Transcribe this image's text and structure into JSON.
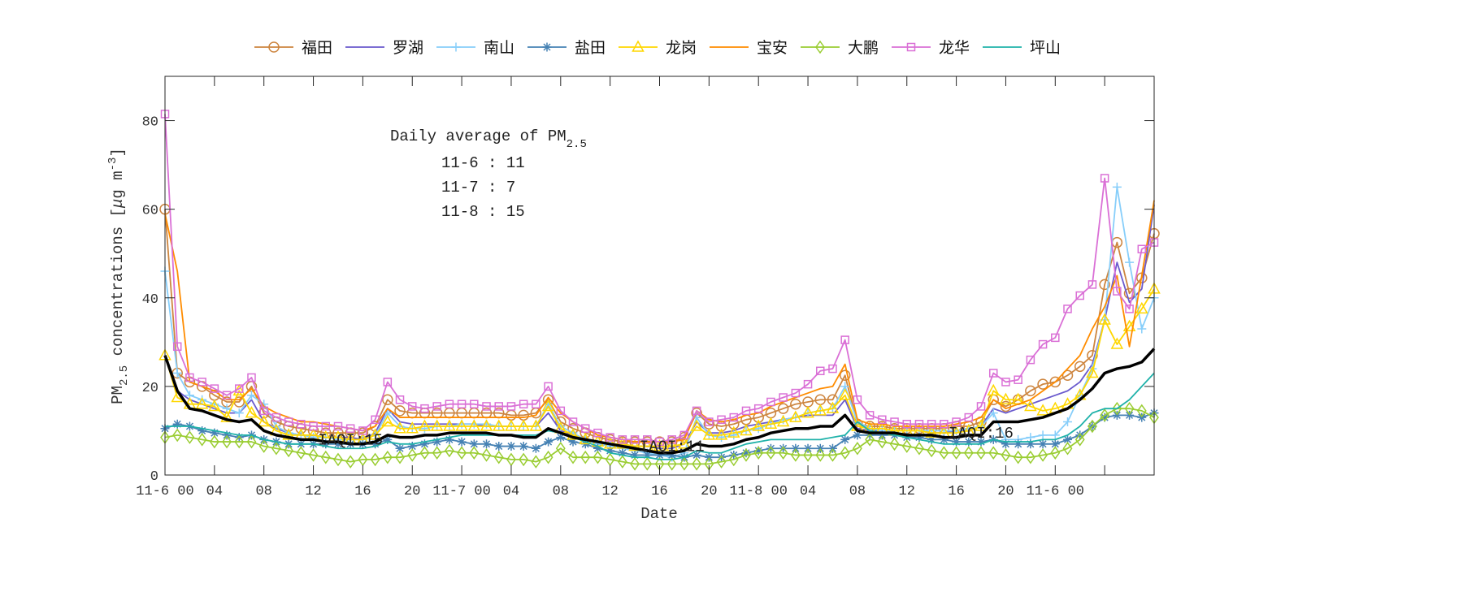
{
  "chart_data": {
    "type": "line",
    "title": "",
    "xlabel": "Date",
    "ylabel": "PM2.5 concentrations [μg m-3]",
    "ylabel_parts": {
      "pre": "PM",
      "sub": "2.5",
      "mid": " concentrations [",
      "mu": "μ",
      "unit": "g m",
      "sup": "-3",
      "post": "]"
    },
    "x_unit": "hour",
    "xlim": [
      0,
      80
    ],
    "ylim": [
      0,
      90
    ],
    "yticks": [
      0,
      20,
      40,
      60,
      80
    ],
    "xticks": [
      {
        "x": 0,
        "label": "11-6 00"
      },
      {
        "x": 4,
        "label": "04"
      },
      {
        "x": 8,
        "label": "08"
      },
      {
        "x": 12,
        "label": "12"
      },
      {
        "x": 16,
        "label": "16"
      },
      {
        "x": 20,
        "label": "20"
      },
      {
        "x": 24,
        "label": "11-7 00"
      },
      {
        "x": 28,
        "label": "04"
      },
      {
        "x": 32,
        "label": "08"
      },
      {
        "x": 36,
        "label": "12"
      },
      {
        "x": 40,
        "label": "16"
      },
      {
        "x": 44,
        "label": "20"
      },
      {
        "x": 48,
        "label": "11-8 00"
      },
      {
        "x": 52,
        "label": "04"
      },
      {
        "x": 56,
        "label": "08"
      },
      {
        "x": 60,
        "label": "12"
      },
      {
        "x": 64,
        "label": "16"
      },
      {
        "x": 68,
        "label": "20"
      },
      {
        "x": 72,
        "label": "11-6 00"
      },
      {
        "x": 76,
        "label": ""
      },
      {
        "x": 80,
        "label": ""
      }
    ],
    "grid": false,
    "legend_placement": "top-outside, horizontal",
    "series": [
      {
        "name": "福田",
        "color": "#CD853F",
        "marker": "circle",
        "values": [
          60,
          23,
          21,
          20,
          18,
          16.5,
          16.5,
          20,
          14,
          12,
          11,
          10.5,
          10,
          9.5,
          9.5,
          9.5,
          9.5,
          11,
          17,
          14.5,
          14,
          14,
          14,
          14,
          14,
          14,
          14,
          14,
          13.5,
          13.5,
          14,
          17,
          12,
          10.5,
          9.5,
          8.5,
          8,
          7.5,
          7.5,
          7.5,
          7.5,
          7.5,
          8.5,
          14,
          11.5,
          11,
          11.5,
          12.5,
          13,
          14,
          15,
          16,
          16.5,
          17,
          17,
          22.5,
          11.5,
          11,
          11,
          10.5,
          10.5,
          10.5,
          10.5,
          10.5,
          11,
          11,
          12,
          17,
          15.5,
          17,
          19,
          20.5,
          21,
          22.5,
          24.5,
          27,
          43,
          52.5,
          41,
          44.5,
          54.5
        ]
      },
      {
        "name": "罗湖",
        "color": "#6A5ACD",
        "marker": "none",
        "values": [
          27,
          19,
          17,
          16,
          15,
          14,
          14,
          17,
          12,
          10.5,
          9.5,
          9,
          9,
          8.5,
          8.5,
          8.5,
          8,
          9.5,
          15,
          12,
          11.5,
          11.5,
          11.5,
          11.5,
          11.5,
          11.5,
          11,
          11,
          11,
          11,
          11,
          14,
          10,
          9,
          8,
          7.5,
          7,
          6.5,
          6.5,
          6.5,
          6,
          6,
          7,
          12,
          9.5,
          9.5,
          10,
          11,
          11.5,
          12,
          12.5,
          13,
          13.5,
          13.5,
          13.5,
          17,
          10.5,
          10,
          10,
          10,
          10,
          10,
          9.5,
          9.5,
          10,
          10,
          11,
          15,
          14,
          15,
          16,
          17,
          18,
          19,
          21,
          25,
          35,
          48,
          39,
          42,
          61
        ]
      },
      {
        "name": "南山",
        "color": "#87CEFA",
        "marker": "plus",
        "values": [
          46,
          23,
          18,
          17,
          16,
          15,
          14,
          18,
          16,
          11,
          9.5,
          9,
          8.5,
          8.5,
          8,
          8,
          8,
          9,
          14,
          11,
          10.5,
          10.5,
          11,
          11,
          11.5,
          11.5,
          11.5,
          11,
          11,
          11,
          11,
          16,
          11,
          9.5,
          8,
          7,
          6.5,
          6,
          5.5,
          5,
          4.5,
          4,
          5,
          13,
          9,
          8.5,
          9,
          10,
          10.5,
          11.5,
          12.5,
          13,
          14,
          14.5,
          15,
          20,
          12,
          10.5,
          10,
          10,
          10,
          10,
          10,
          10,
          10,
          10.5,
          11,
          14,
          8,
          8,
          8.5,
          9,
          9,
          12,
          18,
          24,
          35,
          65,
          48,
          33,
          40
        ]
      },
      {
        "name": "盐田",
        "color": "#4682B4",
        "marker": "asterisk",
        "values": [
          10.5,
          11.5,
          11,
          10,
          9.5,
          9,
          8.5,
          9,
          8,
          7.5,
          7,
          7,
          7,
          7,
          7,
          7,
          7,
          7,
          8,
          6,
          6.5,
          7,
          7.5,
          8,
          7.5,
          7,
          7,
          6.5,
          6.5,
          6.5,
          6,
          7.5,
          8.5,
          7.5,
          7,
          6,
          5.5,
          5,
          4.5,
          4.5,
          4.5,
          4.5,
          4,
          4.5,
          4,
          4,
          4.5,
          5,
          5.5,
          6,
          6,
          6,
          6,
          6,
          6,
          8,
          9,
          9,
          9,
          9,
          8.5,
          8.5,
          8,
          8,
          7.5,
          7.5,
          7.5,
          8,
          7,
          7,
          7,
          7,
          7,
          8,
          9,
          11,
          13,
          13.5,
          13.5,
          13,
          14
        ]
      },
      {
        "name": "龙岗",
        "color": "#FFD700",
        "marker": "triangle",
        "values": [
          27,
          17.5,
          16,
          16,
          15.5,
          13,
          19,
          14,
          12,
          10,
          9,
          9,
          9,
          8.5,
          8.5,
          8,
          8,
          9,
          12,
          10.5,
          10.5,
          11,
          11,
          11,
          11,
          11,
          11,
          11,
          11,
          11,
          11,
          15.5,
          10.5,
          9,
          8,
          7.5,
          7,
          7,
          6.5,
          6.5,
          6.5,
          6.5,
          7,
          11,
          9,
          9,
          9.5,
          10,
          11,
          11.5,
          12,
          13,
          14,
          14.5,
          15,
          18,
          11,
          10.5,
          10.5,
          10,
          10,
          10,
          9.5,
          9.5,
          9.5,
          10,
          11,
          19,
          17,
          17,
          15.5,
          14.5,
          15,
          16,
          18,
          23,
          35,
          29.5,
          33.5,
          37.5,
          42
        ]
      },
      {
        "name": "宝安",
        "color": "#FF8C00",
        "marker": "none",
        "values": [
          59,
          46,
          21,
          20,
          19,
          17,
          17,
          19.5,
          15.5,
          14,
          13,
          12,
          12,
          11.5,
          11,
          10.5,
          10,
          11,
          15,
          13,
          13,
          13,
          13,
          13,
          13,
          13,
          13,
          13,
          13,
          13,
          13.5,
          17.5,
          14,
          12,
          10.5,
          9,
          8.5,
          8,
          7.5,
          7.5,
          7.5,
          7.5,
          8,
          14.5,
          12.5,
          12,
          12.5,
          13.5,
          14,
          15.5,
          16.5,
          17.5,
          18.5,
          19.5,
          20,
          25,
          12.5,
          11.5,
          11.5,
          11,
          11,
          11,
          11,
          11,
          11.5,
          12,
          13,
          17,
          15,
          16,
          17,
          19,
          21,
          24,
          27,
          33,
          38,
          45,
          29,
          45,
          62
        ]
      },
      {
        "name": "大鹏",
        "color": "#9ACD32",
        "marker": "diamond",
        "values": [
          8.5,
          9,
          8.5,
          8,
          7.5,
          7.5,
          7.5,
          7.5,
          6.5,
          6,
          5.5,
          5,
          4.5,
          4,
          3.5,
          3,
          3.5,
          3.5,
          4,
          4,
          4.5,
          5,
          5,
          5.5,
          5,
          5,
          4.5,
          4,
          3.5,
          3.5,
          3,
          4,
          6,
          4,
          4,
          4,
          3.5,
          3,
          2.5,
          2.5,
          2.5,
          2.5,
          2.5,
          2.5,
          2.5,
          3,
          3.5,
          4.5,
          5,
          5,
          5,
          4.5,
          4.5,
          4.5,
          4.5,
          5,
          6,
          8,
          7.5,
          7,
          6.5,
          6,
          5.5,
          5,
          5,
          5,
          5,
          5,
          4.5,
          4,
          4,
          4.5,
          5,
          6,
          8,
          11,
          13.5,
          15,
          15,
          14.5,
          13
        ]
      },
      {
        "name": "龙华",
        "color": "#DA70D6",
        "marker": "square",
        "values": [
          81.5,
          29,
          22,
          21,
          19.5,
          18,
          19.5,
          22,
          14.5,
          13,
          12,
          11.5,
          11,
          11,
          11,
          10.5,
          10,
          12.5,
          21,
          17,
          15.5,
          15,
          15.5,
          16,
          16,
          16,
          15.5,
          15.5,
          15.5,
          16,
          16,
          20,
          14.5,
          12,
          10.5,
          9.5,
          8.5,
          8,
          8,
          8,
          7.5,
          8,
          9,
          14.5,
          12,
          12.5,
          13,
          14.5,
          15,
          16.5,
          17.5,
          18.5,
          20.5,
          23.5,
          24,
          30.5,
          17,
          13.5,
          12.5,
          12,
          11.5,
          11.5,
          11.5,
          11.5,
          12,
          13,
          15.5,
          23,
          21,
          21.5,
          26,
          29.5,
          31,
          37.5,
          40.5,
          43,
          67,
          41.5,
          37.5,
          51,
          52.5
        ]
      },
      {
        "name": "坪山",
        "color": "#20B2AA",
        "marker": "none",
        "values": [
          11,
          11,
          11,
          10.5,
          10,
          9.5,
          9,
          9,
          8,
          7.5,
          7,
          7,
          7,
          6.5,
          6,
          6,
          6,
          6.5,
          7.5,
          7,
          7,
          7.5,
          8,
          8.5,
          9,
          9,
          9,
          9,
          9,
          9,
          9,
          10,
          9.5,
          8.5,
          7.5,
          6.5,
          5,
          4.5,
          4,
          4,
          3.5,
          3.5,
          4,
          5.5,
          5,
          5,
          6,
          7,
          7.5,
          8,
          8,
          8,
          8,
          8,
          8.5,
          9,
          12,
          10,
          9.5,
          9,
          8.5,
          8,
          7.5,
          7,
          7,
          7,
          7,
          8,
          7.5,
          7.5,
          7.5,
          8,
          8,
          9,
          11,
          14,
          15,
          15,
          17,
          20,
          23
        ]
      },
      {
        "color": "#000000",
        "marker": "none",
        "thick": true,
        "values": [
          27,
          19,
          15,
          14.5,
          13.5,
          12.5,
          12,
          12.5,
          10,
          9,
          8.5,
          8,
          8,
          7.5,
          7.5,
          7,
          7,
          7.5,
          9,
          8.5,
          8.5,
          9,
          9,
          9.5,
          9.5,
          9.5,
          9.5,
          9,
          9,
          8.5,
          8.5,
          10.5,
          9.5,
          8.5,
          8,
          7.5,
          7,
          6.5,
          6,
          5.5,
          5,
          5,
          5.5,
          7,
          6.5,
          6.5,
          7,
          8,
          8.5,
          9.5,
          10,
          10.5,
          10.5,
          11,
          11,
          13.5,
          10,
          9.5,
          9.5,
          9.5,
          9,
          9,
          9,
          8.5,
          8.5,
          9,
          9,
          12,
          12,
          12,
          12.5,
          13,
          14,
          15,
          17,
          19.5,
          23,
          24,
          24.5,
          25.5,
          28.5
        ]
      }
    ],
    "annotations": {
      "daily_title_pre": "Daily average of PM",
      "daily_title_sub": "2.5",
      "daily": [
        "11-6 : 11",
        "11-7 : 7",
        "11-8 : 15"
      ],
      "iaqi": [
        {
          "x": 15,
          "y": 8,
          "text": "IAQI:15"
        },
        {
          "x": 41,
          "y": 6.5,
          "text": "IAQI:11"
        },
        {
          "x": 66,
          "y": 9.5,
          "text": "IAQI:16"
        }
      ]
    }
  }
}
